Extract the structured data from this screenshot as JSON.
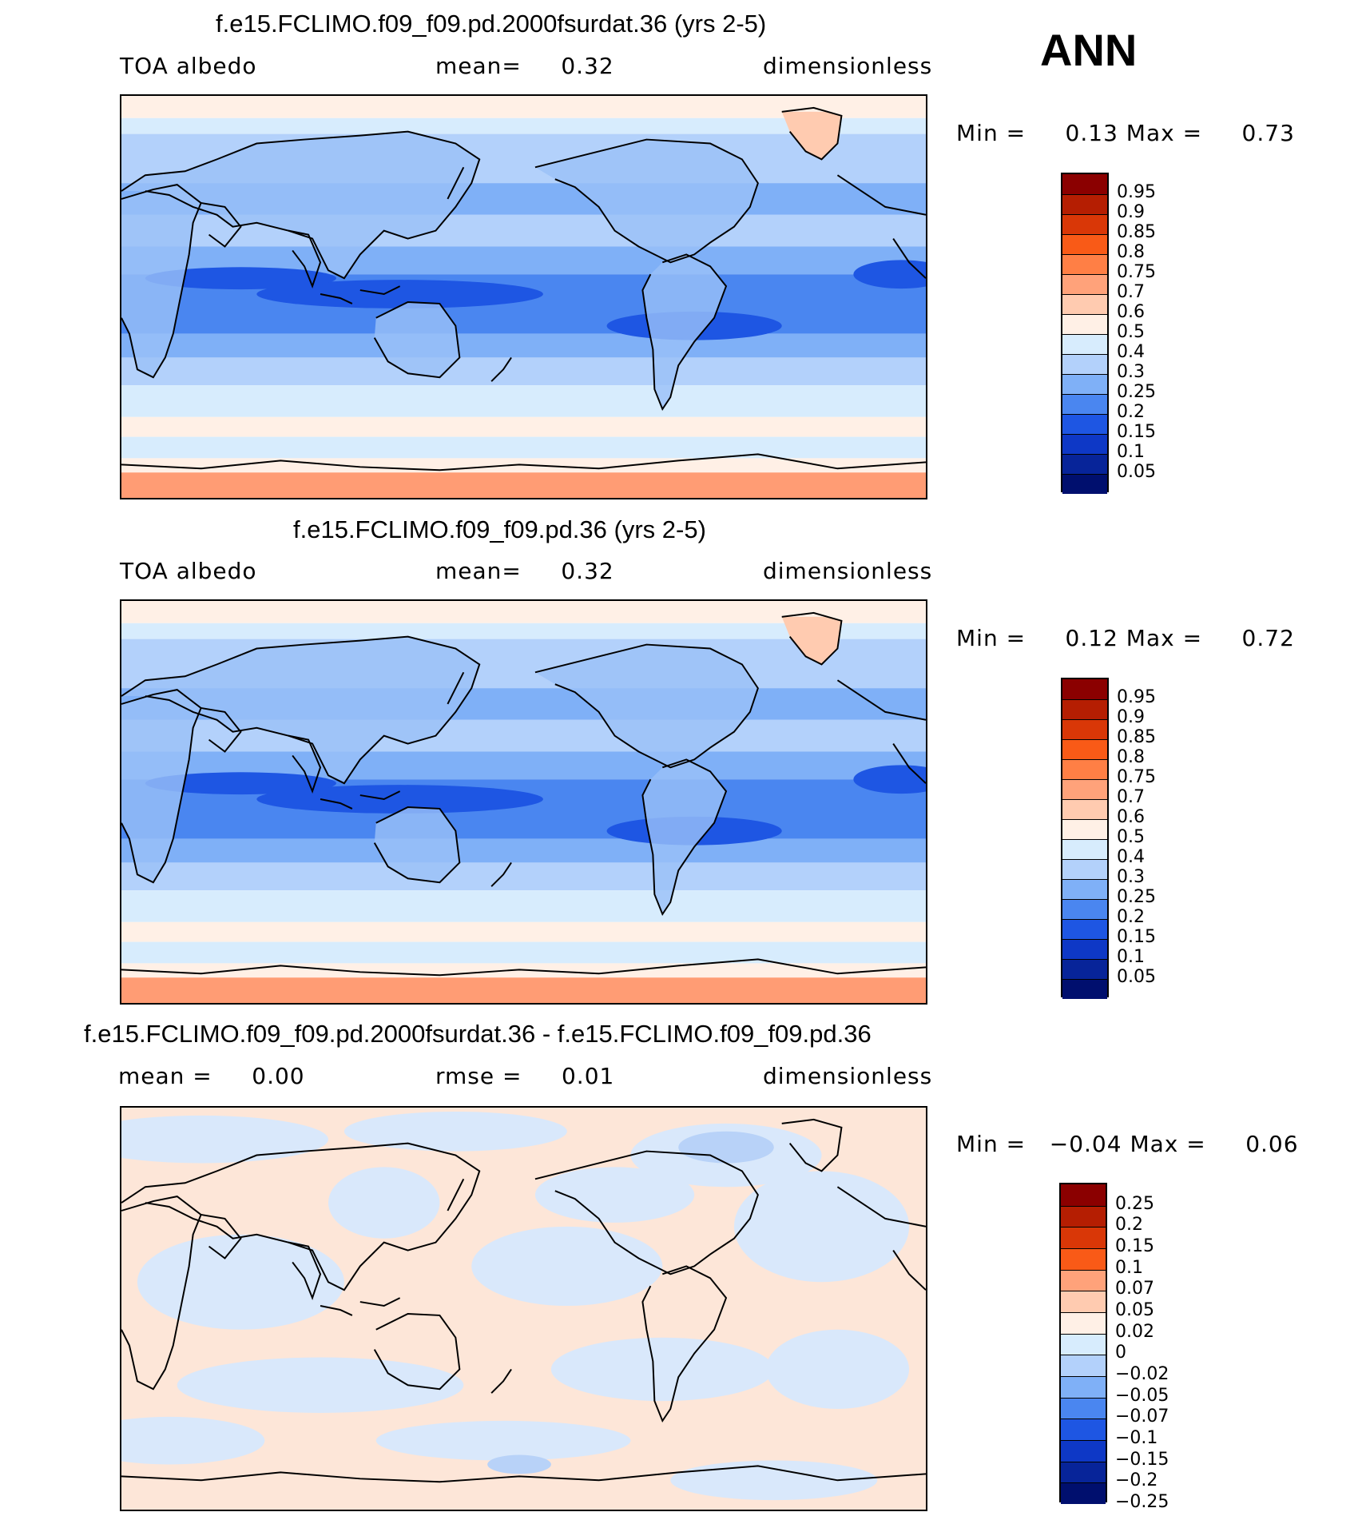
{
  "season": "ANN",
  "panels": [
    {
      "title": "f.e15.FCLIMO.f09_f09.pd.2000fsurdat.36 (yrs 2-5)",
      "sub_left": "TOA albedo",
      "sub_mid": "mean=     0.32",
      "sub_right": "dimensionless",
      "minmax": "Min =     0.13 Max =     0.73",
      "variant": "case1"
    },
    {
      "title": "f.e15.FCLIMO.f09_f09.pd.36 (yrs 2-5)",
      "sub_left": "TOA albedo",
      "sub_mid": "mean=     0.32",
      "sub_right": "dimensionless",
      "minmax": "Min =     0.12 Max =     0.72",
      "variant": "case2"
    },
    {
      "title": "f.e15.FCLIMO.f09_f09.pd.2000fsurdat.36 - f.e15.FCLIMO.f09_f09.pd.36",
      "sub_left": "mean =     0.00",
      "sub_mid": "rmse =     0.01",
      "sub_right": "dimensionless",
      "minmax": "Min =   −0.04 Max =     0.06",
      "variant": "diff"
    }
  ],
  "colorbars": {
    "abs": {
      "labels": [
        "0.95",
        "0.9",
        "0.85",
        "0.8",
        "0.75",
        "0.7",
        "0.6",
        "0.5",
        "0.4",
        "0.3",
        "0.25",
        "0.2",
        "0.15",
        "0.1",
        "0.05"
      ],
      "colors": [
        "#8b0000",
        "#b51e02",
        "#d93707",
        "#f95a17",
        "#ff7f45",
        "#ffa27a",
        "#ffcbb0",
        "#fff0e6",
        "#d7ecfd",
        "#b3d1fb",
        "#7fb0f7",
        "#4a86f0",
        "#1e56e3",
        "#0e38c6",
        "#072499",
        "#000f6e"
      ]
    },
    "diff": {
      "labels": [
        "0.25",
        "0.2",
        "0.15",
        "0.1",
        "0.07",
        "0.05",
        "0.02",
        "0",
        "−0.02",
        "−0.05",
        "−0.07",
        "−0.1",
        "−0.15",
        "−0.2",
        "−0.25"
      ],
      "colors": [
        "#8b0000",
        "#b51e02",
        "#d93707",
        "#f95a17",
        "#ffa27a",
        "#ffcbb0",
        "#fff0e6",
        "#d7ecfd",
        "#b3d1fb",
        "#7fb0f7",
        "#4a86f0",
        "#1e56e3",
        "#0e38c6",
        "#072499",
        "#000f6e"
      ]
    }
  },
  "map_colors": {
    "case1": {
      "polar_far": "#ff9c74",
      "polar_mid": "#ffcfb6",
      "polar_band": "#fff0e6",
      "mid_lat": "#d7ecfd",
      "sub_trop": "#b3d1fb",
      "trop": "#7fb0f7",
      "trop_deep": "#4a86f0",
      "core": "#1e56e3",
      "land": "#9ac1f7",
      "greenland": "#ffcbb0"
    },
    "case2": {
      "polar_far": "#ff9c74",
      "polar_mid": "#ffcfb6",
      "polar_band": "#fff0e6",
      "mid_lat": "#d7ecfd",
      "sub_trop": "#b3d1fb",
      "trop": "#7fb0f7",
      "trop_deep": "#4a86f0",
      "core": "#1e56e3",
      "land": "#9ac1f7",
      "greenland": "#ffcbb0"
    },
    "diff": {
      "base": "#fde6d8",
      "cool": "#d9e8fb",
      "cool2": "#b8d2f8"
    }
  }
}
